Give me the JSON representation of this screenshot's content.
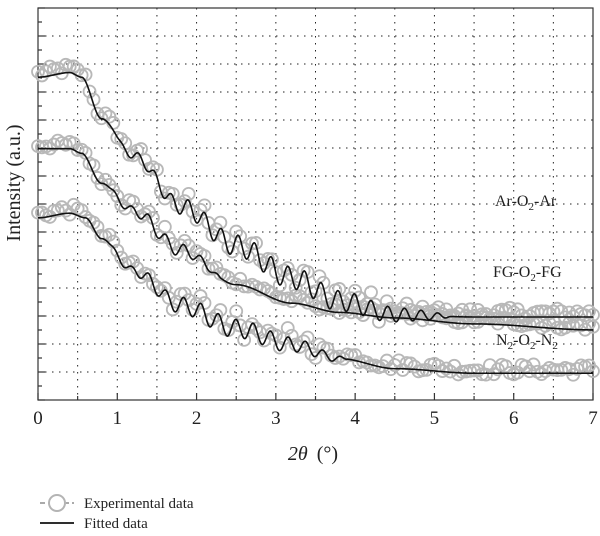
{
  "chart_data": {
    "type": "line",
    "xlabel": "2θ (°)",
    "xlabel_var": "2θ",
    "xlabel_unit": "(°)",
    "ylabel": "Intensity (a.u.)",
    "xlim": [
      0,
      7
    ],
    "xticks": [
      "0",
      "1",
      "2",
      "3",
      "4",
      "5",
      "6",
      "7"
    ],
    "y_tick_labels": false,
    "grid": true,
    "legend_position": "bottom-left",
    "legend": [
      {
        "label": "Experimental data",
        "marker": "open-circle",
        "color": "#b4b4b4"
      },
      {
        "label": "Fitted data",
        "marker": "line",
        "color": "#111111"
      }
    ],
    "series": [
      {
        "name": "Ar-O₂-Ar",
        "label_main": "Ar-O",
        "label_sub": "2",
        "label_tail": "-Ar",
        "fitted": {
          "x": [
            0,
            0.4,
            0.55,
            0.8,
            1.2,
            1.8,
            2.5,
            3.2,
            3.8,
            4.5,
            5.5,
            7.0
          ],
          "y": [
            6.5,
            6.6,
            6.5,
            5.6,
            4.8,
            3.7,
            2.85,
            2.15,
            1.65,
            1.35,
            1.3,
            1.3
          ]
        },
        "oscillation": {
          "start": 1.0,
          "end": 5.2,
          "period": 0.21,
          "amplitude": 0.24
        },
        "scatter_spread": 0.12
      },
      {
        "name": "FG-O₂-FG",
        "label_main": "FG-O",
        "label_sub": "2",
        "label_tail": "-FG",
        "fitted": {
          "x": [
            0,
            0.4,
            0.55,
            0.8,
            1.2,
            1.8,
            2.5,
            3.2,
            3.8,
            4.5,
            5.5,
            7.0
          ],
          "y": [
            4.95,
            4.95,
            4.85,
            4.2,
            3.6,
            2.75,
            2.0,
            1.6,
            1.4,
            1.28,
            1.15,
            1.02
          ]
        },
        "oscillation": {
          "start": 0.9,
          "end": 2.3,
          "period": 0.22,
          "amplitude": 0.14
        },
        "scatter_spread": 0.1
      },
      {
        "name": "N₂-O₂-N₂",
        "label_main": "N",
        "label_sub": "2",
        "label_mid": "-O",
        "label_sub2": "2",
        "label_tail": "-N",
        "label_sub3": "2",
        "fitted": {
          "x": [
            0,
            0.4,
            0.6,
            0.8,
            1.2,
            1.8,
            2.5,
            3.2,
            3.8,
            4.5,
            5.5,
            7.0
          ],
          "y": [
            3.45,
            3.55,
            3.45,
            3.0,
            2.3,
            1.55,
            1.05,
            0.7,
            0.4,
            0.18,
            0.08,
            0.08
          ]
        },
        "oscillation": {
          "start": 0.9,
          "end": 3.9,
          "period": 0.22,
          "amplitude": 0.2
        },
        "scatter_spread": 0.12
      }
    ]
  }
}
